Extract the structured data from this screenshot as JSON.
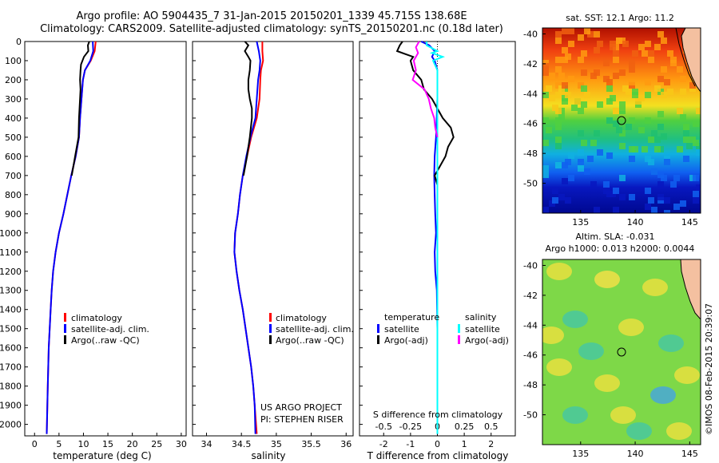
{
  "header": {
    "title_line1": "Argo profile: AO 5904435_7 31-Jan-2015 20150201_1339 45.715S 138.68E",
    "title_line2": "Climatology: CARS2009. Satellite-adjusted climatology: synTS_20150201.nc (0.18d later)"
  },
  "colors": {
    "climatology": "#ff0000",
    "satellite": "#0000ff",
    "argo": "#000000",
    "sal_satellite": "#00ffff",
    "sal_argo": "#ff00ff"
  },
  "depth_ticks": [
    0,
    100,
    200,
    300,
    400,
    500,
    600,
    700,
    800,
    900,
    1000,
    1100,
    1200,
    1300,
    1400,
    1500,
    1600,
    1700,
    1800,
    1900,
    2000
  ],
  "panels": {
    "temperature": {
      "xlabel": "temperature (deg C)",
      "xticks": [
        "0",
        "5",
        "10",
        "15",
        "20",
        "25",
        "30"
      ],
      "legend": [
        "climatology",
        "satellite-adj. clim.",
        "Argo(..raw -QC)"
      ]
    },
    "salinity": {
      "xlabel": "salinity",
      "xticks": [
        "34",
        "34.5",
        "35",
        "35.5",
        "36"
      ],
      "legend": [
        "climatology",
        "satellite-adj. clim.",
        "Argo(..raw -QC)"
      ],
      "project_line1": "US ARGO PROJECT",
      "project_line2": "PI: STEPHEN RISER"
    },
    "difference": {
      "xlabel": "T difference from climatology",
      "top_label": "S difference from climatology",
      "top_ticks": [
        "-0.5",
        "-0.25",
        "0",
        "0.25",
        "0.5"
      ],
      "xticks": [
        "-2",
        "-1",
        "0",
        "1",
        "2"
      ],
      "legend_temp_title": "temperature",
      "legend_sal_title": "salinity",
      "legend_temp": [
        "satellite",
        "Argo(-adj)"
      ],
      "legend_sal": [
        "satellite",
        "Argo(-adj)"
      ]
    }
  },
  "maps": {
    "sst": {
      "title": "sat. SST: 12.1  Argo: 11.2",
      "yticks": [
        "-40",
        "-42",
        "-44",
        "-46",
        "-48",
        "-50"
      ],
      "xticks": [
        "135",
        "140",
        "145"
      ]
    },
    "sla": {
      "title1": "Altim. SLA: -0.031",
      "title2": "Argo h1000: 0.013 h2000: 0.0044",
      "yticks": [
        "-40",
        "-42",
        "-44",
        "-46",
        "-48",
        "-50"
      ],
      "xticks": [
        "135",
        "140",
        "145"
      ]
    },
    "float_position": {
      "lon": 138.68,
      "lat": -45.715
    }
  },
  "credit": "©IMOS 08-Feb-2015 20:39:07",
  "chart_data": [
    {
      "type": "line",
      "xlabel": "temperature (deg C)",
      "ylabel": "",
      "xlim": [
        -2,
        31
      ],
      "ylim": [
        2060,
        0
      ],
      "series": [
        {
          "name": "climatology",
          "depth": [
            0,
            50,
            100,
            150,
            200,
            300,
            400,
            500,
            600,
            700,
            800,
            900,
            1000,
            1100,
            1200,
            1300,
            1400,
            1500,
            1600,
            1800,
            2050
          ],
          "values": [
            12.5,
            12.3,
            11.5,
            10.3,
            9.9,
            9.6,
            9.3,
            9.1,
            8.4,
            7.5,
            6.7,
            5.9,
            5.0,
            4.3,
            3.8,
            3.5,
            3.3,
            3.1,
            2.9,
            2.7,
            2.5
          ]
        },
        {
          "name": "satellite-adj. clim.",
          "depth": [
            0,
            50,
            100,
            150,
            200,
            300,
            400,
            500,
            600,
            700,
            800,
            900,
            1000,
            1100,
            1200,
            1300,
            1400,
            1500,
            1600,
            1800,
            2050
          ],
          "values": [
            11.9,
            12.0,
            11.4,
            10.3,
            9.9,
            9.6,
            9.3,
            9.1,
            8.4,
            7.5,
            6.7,
            5.9,
            5.0,
            4.3,
            3.8,
            3.5,
            3.3,
            3.1,
            2.9,
            2.7,
            2.5
          ]
        },
        {
          "name": "Argo(..raw -QC)",
          "depth": [
            0,
            20,
            50,
            80,
            120,
            150,
            200,
            250,
            300,
            400,
            500,
            600,
            700
          ],
          "values": [
            11.2,
            10.9,
            11.0,
            10.1,
            9.5,
            9.4,
            9.3,
            9.4,
            9.3,
            9.1,
            9.0,
            8.3,
            7.6
          ]
        }
      ]
    },
    {
      "type": "line",
      "xlabel": "salinity",
      "ylabel": "",
      "xlim": [
        33.8,
        36.1
      ],
      "ylim": [
        2060,
        0
      ],
      "series": [
        {
          "name": "climatology",
          "depth": [
            0,
            50,
            100,
            150,
            200,
            300,
            400,
            500,
            600,
            700,
            800,
            900,
            1000,
            1100,
            1200,
            1300,
            1400,
            1500,
            1600,
            1700,
            1800,
            1900,
            2050
          ],
          "values": [
            34.8,
            34.8,
            34.81,
            34.78,
            34.77,
            34.76,
            34.72,
            34.64,
            34.58,
            34.52,
            34.48,
            34.45,
            34.41,
            34.4,
            34.43,
            34.47,
            34.52,
            34.56,
            34.6,
            34.64,
            34.67,
            34.69,
            34.72
          ]
        },
        {
          "name": "satellite-adj. clim.",
          "depth": [
            0,
            50,
            100,
            150,
            200,
            300,
            400,
            500,
            600,
            700,
            800,
            900,
            1000,
            1100,
            1200,
            1300,
            1400,
            1500,
            1600,
            1700,
            1800,
            1900,
            2050
          ],
          "values": [
            34.72,
            34.75,
            34.77,
            34.76,
            34.74,
            34.72,
            34.7,
            34.63,
            34.57,
            34.52,
            34.48,
            34.45,
            34.41,
            34.4,
            34.43,
            34.47,
            34.52,
            34.56,
            34.6,
            34.64,
            34.67,
            34.69,
            34.7
          ]
        },
        {
          "name": "Argo(..raw -QC)",
          "depth": [
            0,
            20,
            50,
            80,
            100,
            150,
            200,
            250,
            300,
            350,
            400,
            500,
            600,
            700
          ],
          "values": [
            34.55,
            34.6,
            34.55,
            34.6,
            34.63,
            34.62,
            34.6,
            34.6,
            34.62,
            34.65,
            34.65,
            34.62,
            34.58,
            34.53
          ]
        }
      ]
    },
    {
      "type": "line",
      "xlabel": "T difference from climatology",
      "ylabel": "",
      "xlim": [
        -2.9,
        2.9
      ],
      "ylim": [
        2060,
        0
      ],
      "series": [
        {
          "name": "temperature satellite",
          "depth": [
            0,
            20,
            50,
            80,
            100,
            150,
            200,
            300,
            500,
            600,
            700,
            800,
            900,
            1000,
            1100,
            1200,
            1300,
            1500,
            1800,
            2050
          ],
          "values": [
            -0.6,
            -0.3,
            -0.1,
            -0.2,
            -0.1,
            0,
            0,
            0,
            -0.05,
            -0.1,
            -0.12,
            -0.1,
            -0.08,
            -0.05,
            -0.1,
            -0.08,
            -0.02,
            0,
            0,
            0
          ]
        },
        {
          "name": "temperature Argo(-adj)",
          "depth": [
            0,
            20,
            50,
            80,
            100,
            150,
            200,
            250,
            300,
            400,
            450,
            500,
            550,
            600,
            650,
            700,
            750
          ],
          "values": [
            -1.3,
            -1.4,
            -1.5,
            -0.9,
            -1.0,
            -0.9,
            -0.6,
            -0.5,
            -0.2,
            0.2,
            0.5,
            0.6,
            0.4,
            0.3,
            0.1,
            -0.1,
            0
          ]
        },
        {
          "name": "salinity satellite",
          "depth": [
            0,
            20,
            50,
            60,
            80,
            100,
            150,
            200,
            300,
            500,
            1000,
            1500,
            2050
          ],
          "values": [
            -0.1,
            -0.1,
            0,
            -0.05,
            0.05,
            -0.04,
            0,
            0,
            0,
            0,
            0,
            0,
            0
          ]
        },
        {
          "name": "salinity Argo(-adj)",
          "depth": [
            0,
            30,
            60,
            100,
            150,
            200,
            250,
            300,
            350,
            400,
            450,
            500
          ],
          "values": [
            -0.17,
            -0.2,
            -0.18,
            -0.22,
            -0.2,
            -0.23,
            -0.12,
            -0.08,
            -0.06,
            -0.03,
            -0.02,
            0
          ]
        }
      ]
    }
  ]
}
